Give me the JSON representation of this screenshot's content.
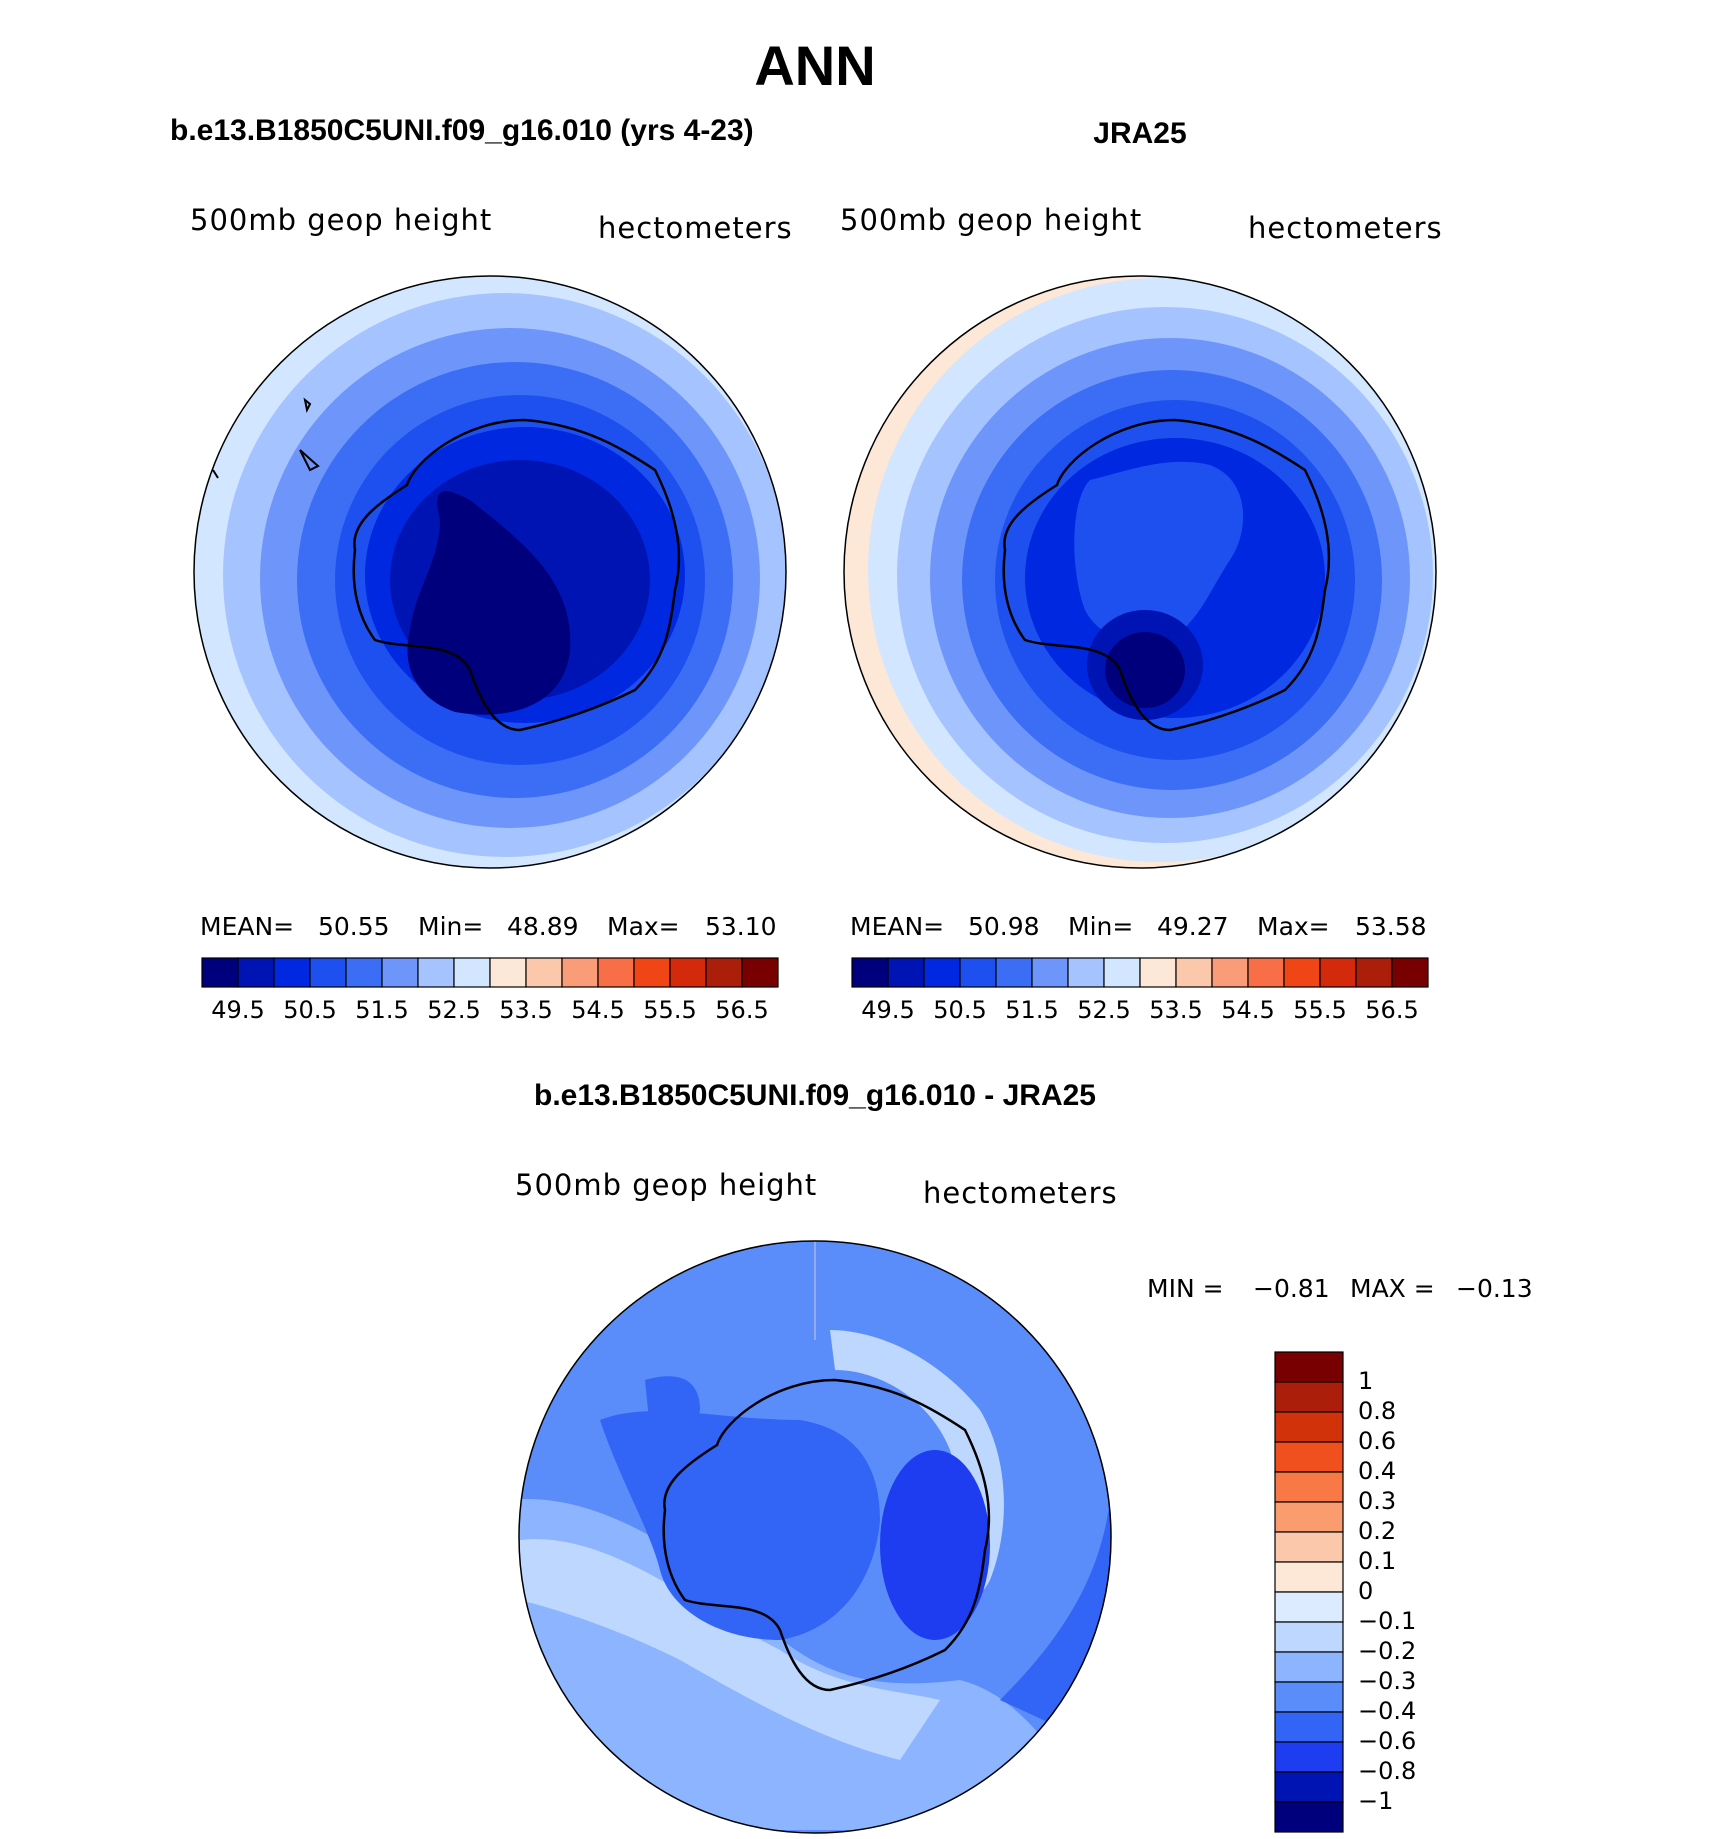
{
  "figure": {
    "title": "ANN",
    "colors": {
      "abs_levels": [
        "#00007d",
        "#0014b3",
        "#0028e0",
        "#1e50f0",
        "#3c6ef5",
        "#6e96fa",
        "#a5c3ff",
        "#d2e6ff",
        "#fde8d8",
        "#fcc8ac",
        "#fb9c78",
        "#f86e46",
        "#f04616",
        "#d22a0a",
        "#aa1e0a",
        "#780000"
      ],
      "diff_levels": [
        "#00007d",
        "#0014b3",
        "#1e3cf0",
        "#3264f5",
        "#5a8cfa",
        "#8cb4ff",
        "#bed7ff",
        "#dcebff",
        "#fde8d8",
        "#fcc8ac",
        "#fa9c6e",
        "#f87846",
        "#f0501e",
        "#d2320a",
        "#aa1e0a",
        "#780000"
      ],
      "coastline": "#000000"
    }
  },
  "panel_model": {
    "header": "b.e13.B1850C5UNI.f09_g16.010 (yrs 4-23)",
    "field": "500mb geop height",
    "units": "hectometers",
    "stats": {
      "mean_label": "MEAN=",
      "mean": "50.55",
      "min_label": "Min=",
      "min": "48.89",
      "max_label": "Max=",
      "max": "53.10"
    },
    "colorbar_ticks": [
      "49.5",
      "50.5",
      "51.5",
      "52.5",
      "53.5",
      "54.5",
      "55.5",
      "56.5"
    ]
  },
  "panel_obs": {
    "header": "JRA25",
    "field": "500mb geop height",
    "units": "hectometers",
    "stats": {
      "mean_label": "MEAN=",
      "mean": "50.98",
      "min_label": "Min=",
      "min": "49.27",
      "max_label": "Max=",
      "max": "53.58"
    },
    "colorbar_ticks": [
      "49.5",
      "50.5",
      "51.5",
      "52.5",
      "53.5",
      "54.5",
      "55.5",
      "56.5"
    ]
  },
  "panel_diff": {
    "header": "b.e13.B1850C5UNI.f09_g16.010 - JRA25",
    "field": "500mb geop height",
    "units": "hectometers",
    "stats": {
      "min_label": "MIN =",
      "min": "−0.81",
      "max_label": "MAX =",
      "max": "−0.13"
    },
    "colorbar_ticks": [
      "1",
      "0.8",
      "0.6",
      "0.4",
      "0.3",
      "0.2",
      "0.1",
      "0",
      "−0.1",
      "−0.2",
      "−0.3",
      "−0.4",
      "−0.6",
      "−0.8",
      "−1"
    ]
  }
}
